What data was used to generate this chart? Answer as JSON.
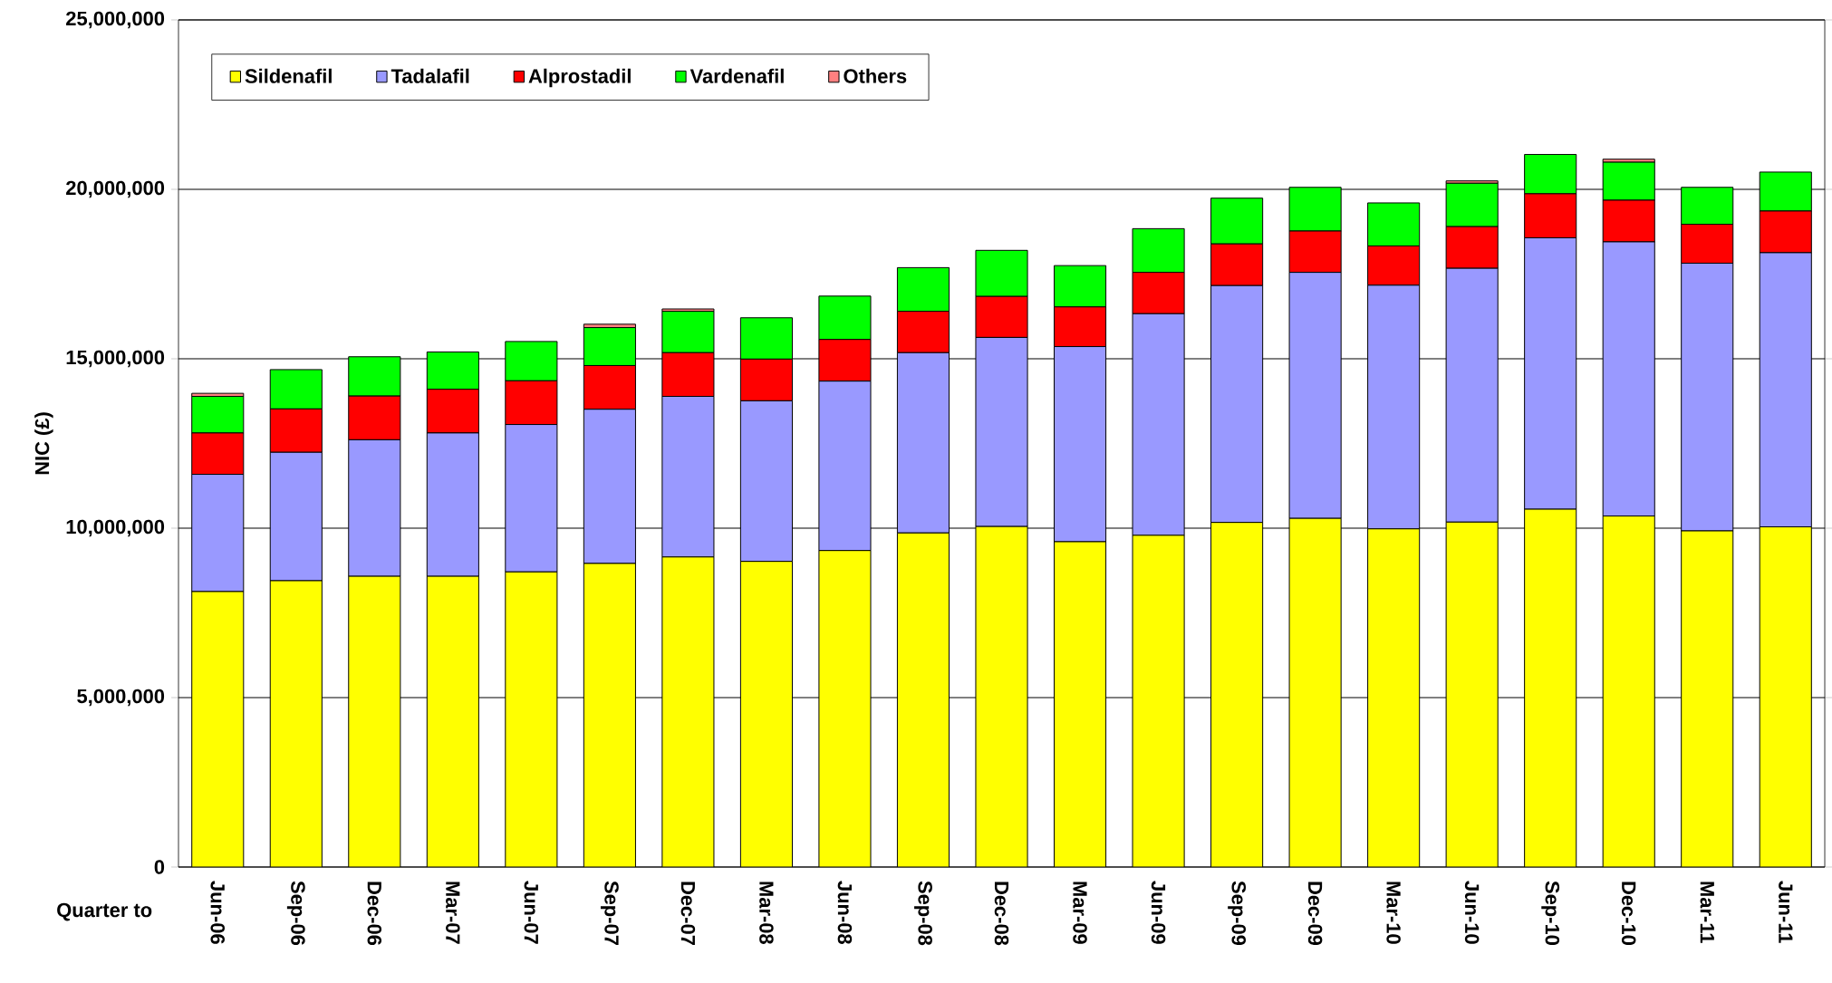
{
  "chart_data": {
    "type": "bar",
    "stacked": true,
    "ylabel": "NIC (£)",
    "xlabel": "Quarter to",
    "categories": [
      "Jun-06",
      "Sep-06",
      "Dec-06",
      "Mar-07",
      "Jun-07",
      "Sep-07",
      "Dec-07",
      "Mar-08",
      "Jun-08",
      "Sep-08",
      "Dec-08",
      "Mar-09",
      "Jun-09",
      "Sep-09",
      "Dec-09",
      "Mar-10",
      "Jun-10",
      "Sep-10",
      "Dec-10",
      "Mar-11",
      "Jun-11"
    ],
    "series": [
      {
        "name": "Sildenafil",
        "color": "#ffff00",
        "values": [
          8130000,
          8450000,
          8580000,
          8580000,
          8710000,
          8960000,
          9150000,
          9020000,
          9340000,
          9860000,
          10050000,
          9600000,
          9790000,
          10170000,
          10290000,
          9980000,
          10180000,
          10560000,
          10360000,
          9920000,
          10040000
        ]
      },
      {
        "name": "Tadalafil",
        "color": "#9999ff",
        "values": [
          3460000,
          3790000,
          4030000,
          4230000,
          4350000,
          4550000,
          4740000,
          4740000,
          5000000,
          5320000,
          5580000,
          5760000,
          6540000,
          6990000,
          7260000,
          7190000,
          7490000,
          8010000,
          8090000,
          7900000,
          8090000
        ]
      },
      {
        "name": "Alprostadil",
        "color": "#ff0000",
        "values": [
          1220000,
          1280000,
          1290000,
          1290000,
          1290000,
          1290000,
          1290000,
          1230000,
          1230000,
          1220000,
          1210000,
          1170000,
          1220000,
          1230000,
          1220000,
          1160000,
          1230000,
          1300000,
          1230000,
          1150000,
          1230000
        ]
      },
      {
        "name": "Vardenafil",
        "color": "#00ff00",
        "values": [
          1080000,
          1160000,
          1160000,
          1100000,
          1160000,
          1120000,
          1220000,
          1220000,
          1280000,
          1290000,
          1360000,
          1220000,
          1290000,
          1350000,
          1290000,
          1270000,
          1280000,
          1160000,
          1120000,
          1090000,
          1150000
        ]
      },
      {
        "name": "Others",
        "color": "#ff8080",
        "values": [
          90000,
          0,
          0,
          0,
          0,
          100000,
          70000,
          0,
          0,
          0,
          0,
          0,
          0,
          0,
          0,
          0,
          70000,
          0,
          90000,
          0,
          0
        ]
      }
    ],
    "ylim": [
      0,
      25000000
    ],
    "yticks": [
      {
        "value": 0,
        "label": "0"
      },
      {
        "value": 5000000,
        "label": "5,000,000"
      },
      {
        "value": 10000000,
        "label": "10,000,000"
      },
      {
        "value": 15000000,
        "label": "15,000,000"
      },
      {
        "value": 20000000,
        "label": "20,000,000"
      },
      {
        "value": 25000000,
        "label": "25,000,000"
      }
    ],
    "grid": "y",
    "legend": "top left"
  }
}
